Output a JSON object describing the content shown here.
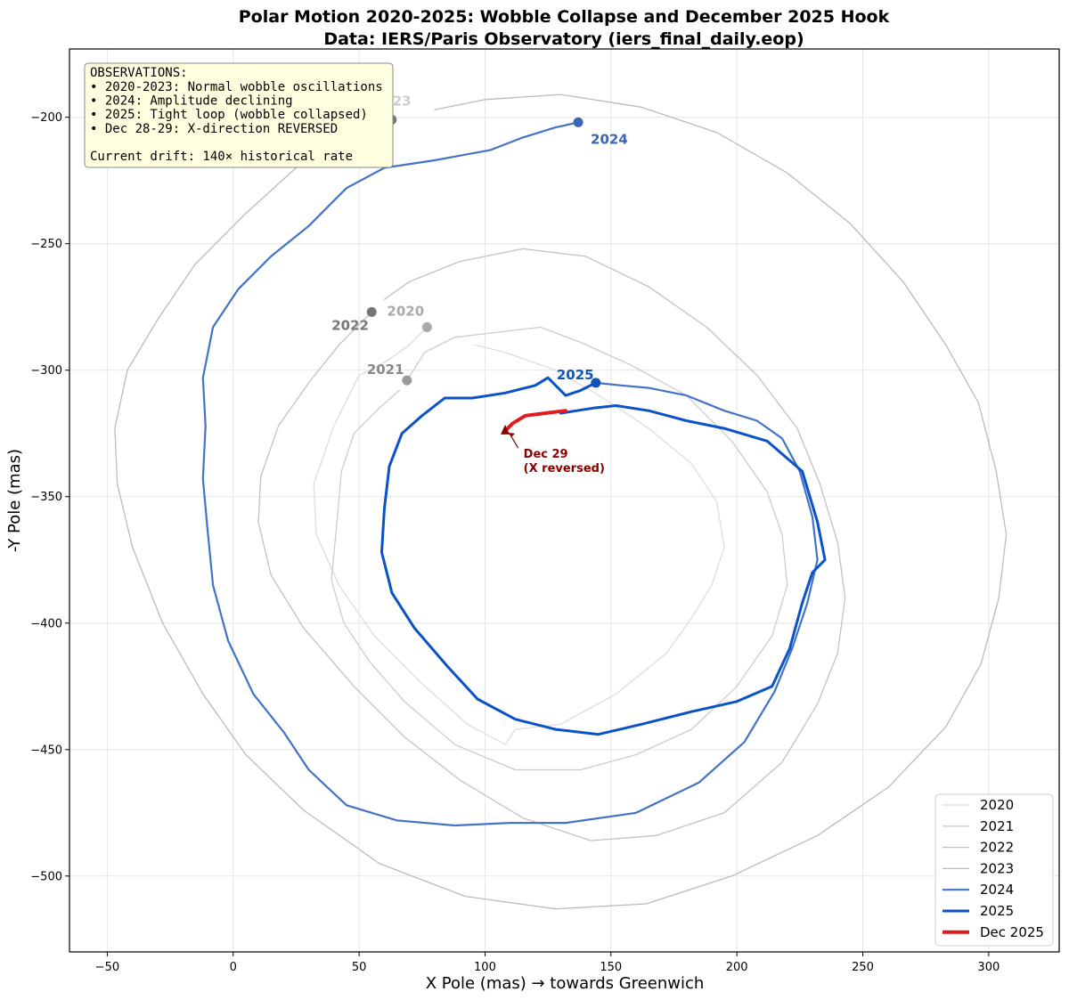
{
  "chart_data": {
    "type": "line",
    "title": "Polar Motion 2020-2025: Wobble Collapse and December 2025 Hook",
    "subtitle": "Data: IERS/Paris Observatory (iers_final_daily.eop)",
    "xlabel": "X Pole (mas) → towards Greenwich",
    "ylabel": "-Y Pole (mas)",
    "xlim": [
      -65,
      328
    ],
    "ylim": [
      -530,
      -173
    ],
    "x_ticks": [
      -50,
      0,
      50,
      100,
      150,
      200,
      250,
      300
    ],
    "y_ticks": [
      -200,
      -250,
      -300,
      -350,
      -400,
      -450,
      -500
    ],
    "grid": true,
    "legend_position": "bottom-right",
    "colors": {
      "2020": "#dddddd",
      "2021": "#cccccc",
      "2022": "#c2c2c2",
      "2023": "#bbbbbb",
      "2024": "#4472c4",
      "2025": "#0a52c8",
      "Dec 2025": "#e31a1c",
      "dec_label": "#8b0000"
    },
    "series": [
      {
        "name": "2020",
        "start_label": "2020",
        "start": [
          77,
          -283
        ],
        "points": [
          [
            77,
            -283
          ],
          [
            70,
            -290
          ],
          [
            60,
            -297
          ],
          [
            50,
            -302
          ],
          [
            40,
            -322
          ],
          [
            32,
            -345
          ],
          [
            33,
            -365
          ],
          [
            42,
            -385
          ],
          [
            56,
            -405
          ],
          [
            74,
            -423
          ],
          [
            93,
            -440
          ],
          [
            108,
            -448
          ],
          [
            112,
            -442
          ],
          [
            130,
            -440
          ],
          [
            152,
            -428
          ],
          [
            172,
            -412
          ],
          [
            182,
            -398
          ],
          [
            190,
            -385
          ],
          [
            195,
            -370
          ],
          [
            192,
            -352
          ],
          [
            182,
            -337
          ],
          [
            165,
            -323
          ],
          [
            147,
            -311
          ],
          [
            128,
            -300
          ],
          [
            108,
            -293
          ],
          [
            96,
            -290
          ]
        ]
      },
      {
        "name": "2021",
        "start_label": "2021",
        "start": [
          69,
          -304
        ],
        "points": [
          [
            69,
            -304
          ],
          [
            76,
            -293
          ],
          [
            88,
            -287
          ],
          [
            105,
            -285
          ],
          [
            122,
            -283
          ],
          [
            138,
            -289
          ],
          [
            158,
            -298
          ],
          [
            180,
            -310
          ],
          [
            198,
            -328
          ],
          [
            212,
            -348
          ],
          [
            218,
            -365
          ],
          [
            220,
            -385
          ],
          [
            214,
            -405
          ],
          [
            200,
            -425
          ],
          [
            182,
            -442
          ],
          [
            160,
            -452
          ],
          [
            138,
            -458
          ],
          [
            112,
            -458
          ],
          [
            88,
            -448
          ],
          [
            68,
            -431
          ],
          [
            54,
            -415
          ],
          [
            44,
            -400
          ],
          [
            39,
            -383
          ],
          [
            41,
            -362
          ],
          [
            43,
            -340
          ],
          [
            48,
            -325
          ],
          [
            58,
            -315
          ],
          [
            66,
            -308
          ]
        ]
      },
      {
        "name": "2022",
        "start_label": "2022",
        "start": [
          55,
          -277
        ],
        "points": [
          [
            55,
            -277
          ],
          [
            42,
            -290
          ],
          [
            30,
            -305
          ],
          [
            18,
            -322
          ],
          [
            11,
            -342
          ],
          [
            10,
            -360
          ],
          [
            15,
            -381
          ],
          [
            28,
            -402
          ],
          [
            48,
            -425
          ],
          [
            68,
            -445
          ],
          [
            90,
            -462
          ],
          [
            115,
            -477
          ],
          [
            142,
            -486
          ],
          [
            168,
            -484
          ],
          [
            195,
            -475
          ],
          [
            218,
            -455
          ],
          [
            232,
            -432
          ],
          [
            240,
            -412
          ],
          [
            243,
            -390
          ],
          [
            240,
            -368
          ],
          [
            233,
            -345
          ],
          [
            224,
            -323
          ],
          [
            208,
            -302
          ],
          [
            188,
            -283
          ],
          [
            165,
            -267
          ],
          [
            140,
            -255
          ],
          [
            115,
            -252
          ],
          [
            90,
            -257
          ],
          [
            70,
            -265
          ],
          [
            60,
            -272
          ]
        ]
      },
      {
        "name": "2023",
        "start_label": "2023",
        "start": [
          63,
          -201
        ],
        "points": [
          [
            63,
            -201
          ],
          [
            45,
            -208
          ],
          [
            25,
            -220
          ],
          [
            5,
            -238
          ],
          [
            -15,
            -258
          ],
          [
            -30,
            -280
          ],
          [
            -42,
            -300
          ],
          [
            -47,
            -323
          ],
          [
            -46,
            -345
          ],
          [
            -40,
            -370
          ],
          [
            -28,
            -400
          ],
          [
            -12,
            -428
          ],
          [
            5,
            -452
          ],
          [
            28,
            -474
          ],
          [
            58,
            -495
          ],
          [
            92,
            -508
          ],
          [
            128,
            -513
          ],
          [
            164,
            -511
          ],
          [
            198,
            -500
          ],
          [
            232,
            -484
          ],
          [
            260,
            -465
          ],
          [
            283,
            -441
          ],
          [
            297,
            -416
          ],
          [
            304,
            -390
          ],
          [
            307,
            -365
          ],
          [
            303,
            -340
          ],
          [
            296,
            -313
          ],
          [
            283,
            -290
          ],
          [
            266,
            -265
          ],
          [
            245,
            -242
          ],
          [
            220,
            -222
          ],
          [
            192,
            -206
          ],
          [
            162,
            -196
          ],
          [
            130,
            -191
          ],
          [
            100,
            -193
          ],
          [
            80,
            -197
          ]
        ]
      },
      {
        "name": "2024",
        "start_label": "2024",
        "start": [
          137,
          -202
        ],
        "points": [
          [
            137,
            -202
          ],
          [
            128,
            -204
          ],
          [
            115,
            -208
          ],
          [
            102,
            -213
          ],
          [
            80,
            -217
          ],
          [
            60,
            -220
          ],
          [
            45,
            -228
          ],
          [
            30,
            -243
          ],
          [
            15,
            -255
          ],
          [
            2,
            -268
          ],
          [
            -8,
            -283
          ],
          [
            -12,
            -303
          ],
          [
            -11,
            -322
          ],
          [
            -12,
            -343
          ],
          [
            -10,
            -365
          ],
          [
            -8,
            -385
          ],
          [
            -2,
            -407
          ],
          [
            8,
            -428
          ],
          [
            20,
            -443
          ],
          [
            30,
            -458
          ],
          [
            45,
            -472
          ],
          [
            65,
            -478
          ],
          [
            88,
            -480
          ],
          [
            110,
            -479
          ],
          [
            132,
            -479
          ],
          [
            160,
            -475
          ],
          [
            185,
            -463
          ],
          [
            203,
            -447
          ],
          [
            215,
            -427
          ],
          [
            222,
            -410
          ],
          [
            228,
            -392
          ],
          [
            232,
            -375
          ],
          [
            230,
            -358
          ],
          [
            225,
            -340
          ],
          [
            218,
            -327
          ],
          [
            208,
            -320
          ],
          [
            195,
            -316
          ],
          [
            180,
            -310
          ],
          [
            165,
            -307
          ],
          [
            154,
            -306
          ],
          [
            144,
            -305
          ]
        ]
      },
      {
        "name": "2025",
        "start_label": "2025",
        "start": [
          144,
          -305
        ],
        "points": [
          [
            144,
            -305
          ],
          [
            138,
            -308
          ],
          [
            132,
            -310
          ],
          [
            125,
            -303
          ],
          [
            120,
            -306
          ],
          [
            108,
            -309
          ],
          [
            95,
            -311
          ],
          [
            84,
            -311
          ],
          [
            75,
            -318
          ],
          [
            67,
            -325
          ],
          [
            62,
            -338
          ],
          [
            60,
            -355
          ],
          [
            59,
            -372
          ],
          [
            63,
            -388
          ],
          [
            72,
            -402
          ],
          [
            85,
            -417
          ],
          [
            97,
            -430
          ],
          [
            112,
            -438
          ],
          [
            128,
            -442
          ],
          [
            145,
            -444
          ],
          [
            162,
            -440
          ],
          [
            182,
            -435
          ],
          [
            200,
            -431
          ],
          [
            214,
            -425
          ],
          [
            221,
            -410
          ],
          [
            226,
            -392
          ],
          [
            230,
            -380
          ],
          [
            235,
            -375
          ],
          [
            232,
            -360
          ],
          [
            226,
            -340
          ],
          [
            212,
            -328
          ],
          [
            195,
            -323
          ],
          [
            180,
            -320
          ],
          [
            165,
            -316
          ],
          [
            152,
            -314
          ],
          [
            143,
            -315
          ],
          [
            130,
            -317
          ]
        ]
      },
      {
        "name": "Dec 2025",
        "points": [
          [
            132,
            -316
          ],
          [
            124,
            -317
          ],
          [
            116,
            -318
          ],
          [
            111,
            -321
          ],
          [
            108,
            -324
          ]
        ]
      }
    ],
    "annotations": [
      {
        "text_lines": [
          "Dec 29",
          "(X reversed)"
        ],
        "target": [
          108,
          -324
        ],
        "text_at": [
          116,
          -335
        ]
      }
    ],
    "legend": [
      "2020",
      "2021",
      "2022",
      "2023",
      "2024",
      "2025",
      "Dec 2025"
    ],
    "observations_title": "OBSERVATIONS:",
    "observations": [
      "• 2020-2023: Normal wobble oscillations",
      "• 2024: Amplitude declining",
      "• 2025: Tight loop (wobble collapsed)",
      "• Dec 28-29: X-direction REVERSED",
      "",
      "Current drift: 140× historical rate"
    ]
  }
}
